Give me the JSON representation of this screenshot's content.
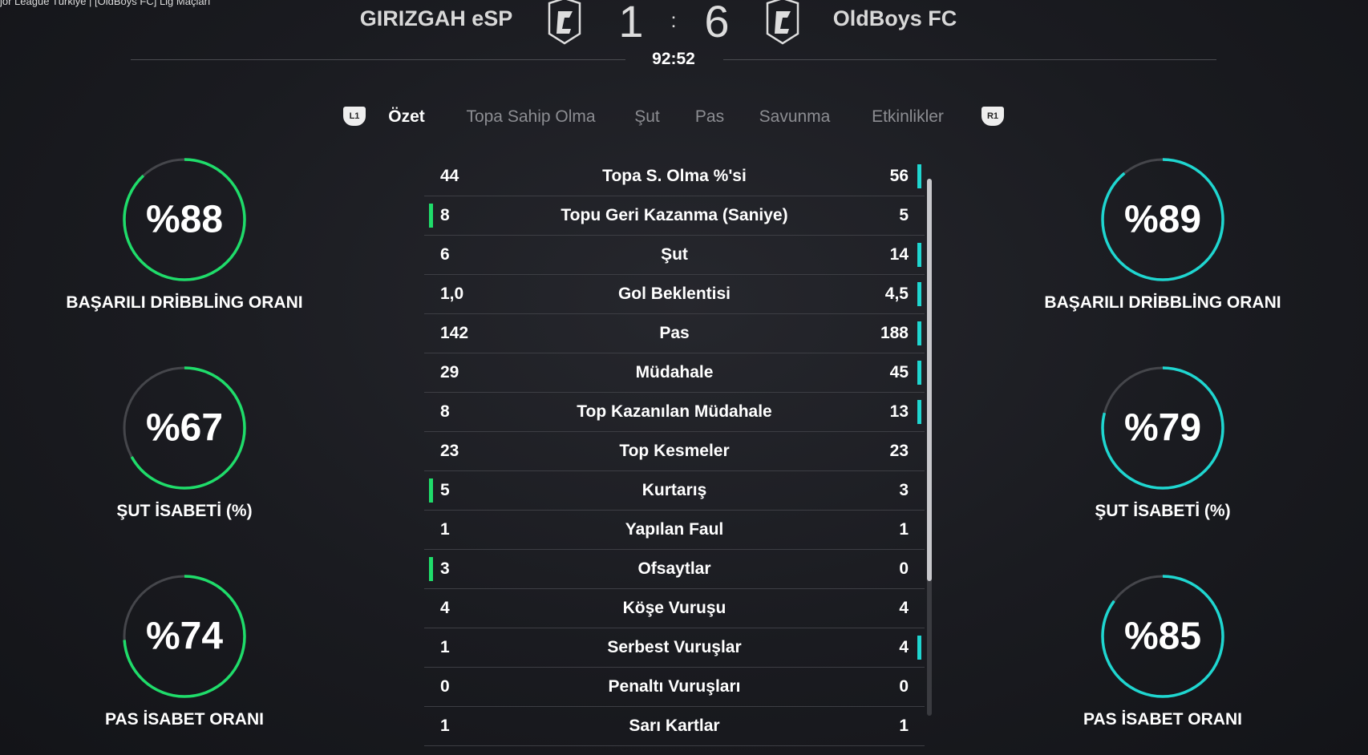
{
  "breadcrumb": "jor League Türkiye | [OldBoys FC] Lig Maçları",
  "match": {
    "home": "GIRIZGAH eSP",
    "away": "OldBoys FC",
    "home_score": "1",
    "separator": ":",
    "away_score": "6",
    "time": "92:52"
  },
  "tabs": {
    "left_button": "L1",
    "right_button": "R1",
    "items": [
      {
        "label": "Özet",
        "active": true
      },
      {
        "label": "Topa Sahip Olma"
      },
      {
        "label": "Şut"
      },
      {
        "label": "Pas"
      },
      {
        "label": "Savunma"
      },
      {
        "label": "Etkinlikler"
      }
    ]
  },
  "colors": {
    "home": "#1fdc6a",
    "away": "#1fd6d0"
  },
  "stats": [
    {
      "label": "Topa S. Olma %'si",
      "home": "44",
      "away": "56",
      "lead": "away"
    },
    {
      "label": "Topu Geri Kazanma (Saniye)",
      "home": "8",
      "away": "5",
      "lead": "home"
    },
    {
      "label": "Şut",
      "home": "6",
      "away": "14",
      "lead": "away"
    },
    {
      "label": "Gol Beklentisi",
      "home": "1,0",
      "away": "4,5",
      "lead": "away"
    },
    {
      "label": "Pas",
      "home": "142",
      "away": "188",
      "lead": "away"
    },
    {
      "label": "Müdahale",
      "home": "29",
      "away": "45",
      "lead": "away"
    },
    {
      "label": "Top Kazanılan Müdahale",
      "home": "8",
      "away": "13",
      "lead": "away"
    },
    {
      "label": "Top Kesmeler",
      "home": "23",
      "away": "23",
      "lead": ""
    },
    {
      "label": "Kurtarış",
      "home": "5",
      "away": "3",
      "lead": "home"
    },
    {
      "label": "Yapılan Faul",
      "home": "1",
      "away": "1",
      "lead": ""
    },
    {
      "label": "Ofsaytlar",
      "home": "3",
      "away": "0",
      "lead": "home"
    },
    {
      "label": "Köşe Vuruşu",
      "home": "4",
      "away": "4",
      "lead": ""
    },
    {
      "label": "Serbest Vuruşlar",
      "home": "1",
      "away": "4",
      "lead": "away"
    },
    {
      "label": "Penaltı Vuruşları",
      "home": "0",
      "away": "0",
      "lead": ""
    },
    {
      "label": "Sarı Kartlar",
      "home": "1",
      "away": "1",
      "lead": ""
    }
  ],
  "gauges": {
    "home": [
      {
        "value": 88,
        "text": "%88",
        "label": "BAŞARILI DRİBBLİNG ORANI"
      },
      {
        "value": 67,
        "text": "%67",
        "label": "ŞUT İSABETİ (%)"
      },
      {
        "value": 74,
        "text": "%74",
        "label": "PAS İSABET ORANI"
      }
    ],
    "away": [
      {
        "value": 89,
        "text": "%89",
        "label": "BAŞARILI DRİBBLİNG ORANI"
      },
      {
        "value": 79,
        "text": "%79",
        "label": "ŞUT İSABETİ (%)"
      },
      {
        "value": 85,
        "text": "%85",
        "label": "PAS İSABET ORANI"
      }
    ]
  }
}
